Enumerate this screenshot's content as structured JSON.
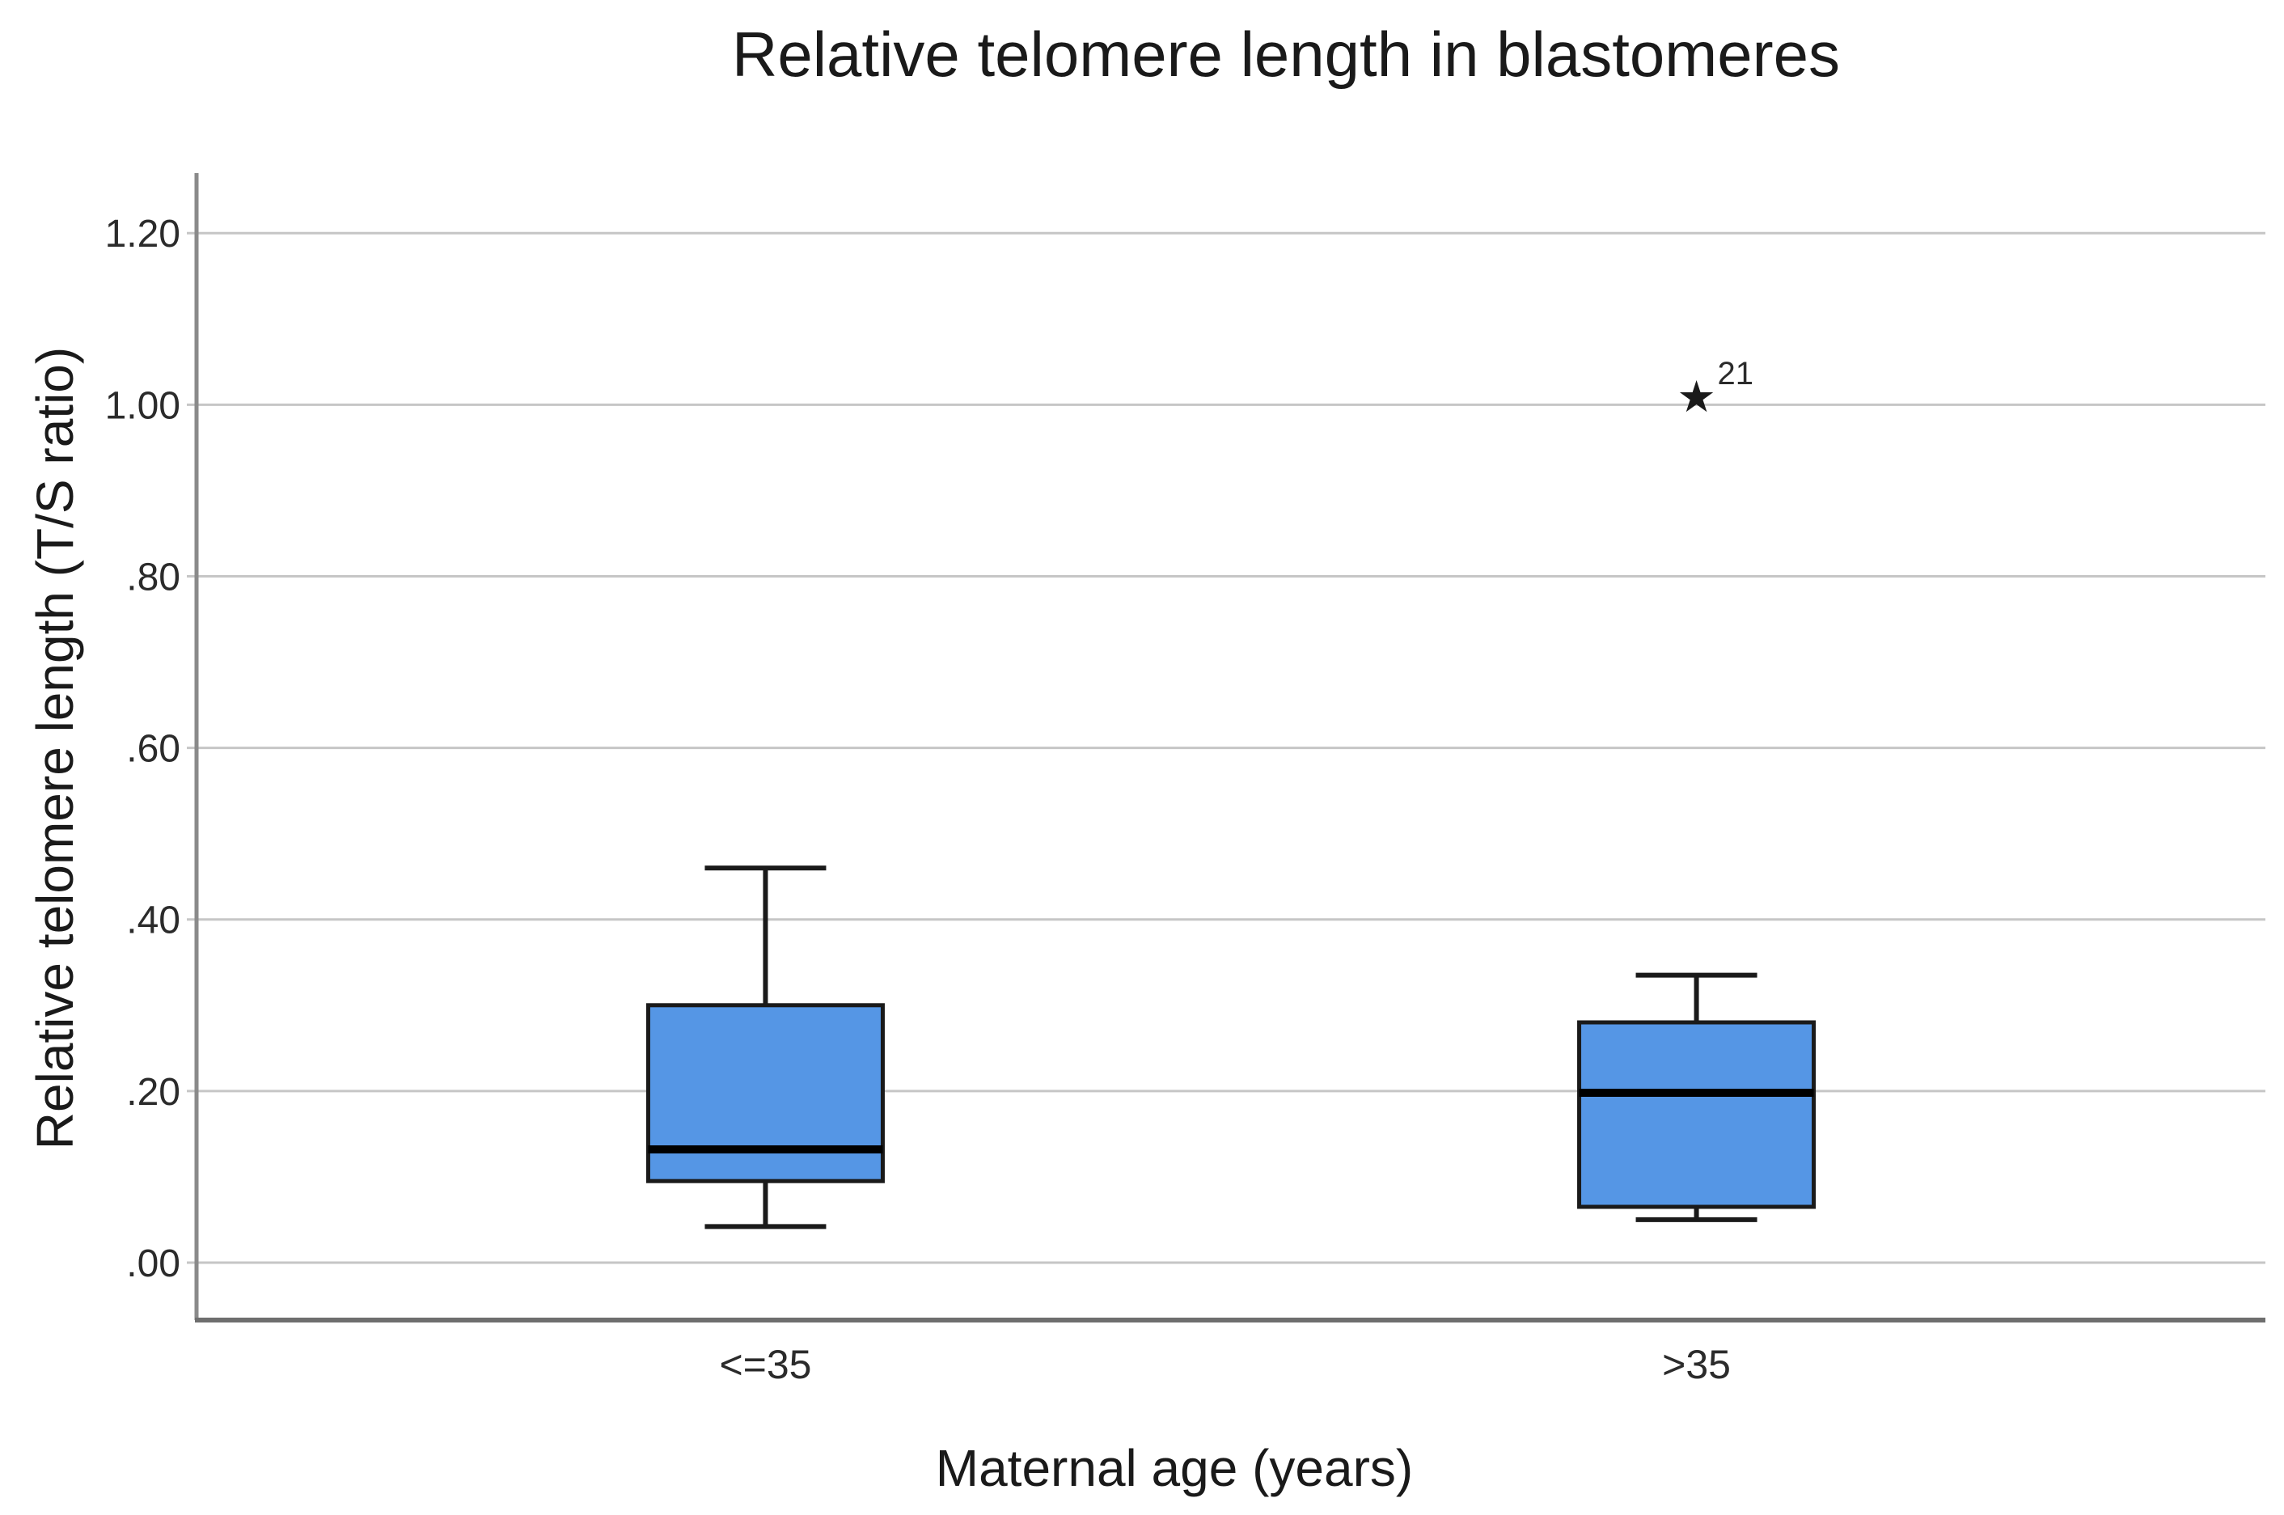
{
  "chart_data": {
    "type": "box",
    "title": "Relative telomere length in blastomeres",
    "xlabel": "Maternal age (years)",
    "ylabel": "Relative telomere length (T/S ratio)",
    "categories": [
      "<=35",
      ">35"
    ],
    "y_ticks": [
      {
        "label": "1.20",
        "value": 1.2
      },
      {
        "label": "1.00",
        "value": 1.0
      },
      {
        "label": ".80",
        "value": 0.8
      },
      {
        "label": ".60",
        "value": 0.6
      },
      {
        "label": ".40",
        "value": 0.4
      },
      {
        "label": ".20",
        "value": 0.2
      },
      {
        "label": ".00",
        "value": 0.0
      }
    ],
    "ylim": [
      -0.067,
      1.27
    ],
    "grid": true,
    "legend": false,
    "series": [
      {
        "category": "<=35",
        "whisker_low": 0.042,
        "q1": 0.095,
        "median": 0.132,
        "q3": 0.3,
        "whisker_high": 0.46,
        "outliers": []
      },
      {
        "category": ">35",
        "whisker_low": 0.05,
        "q1": 0.065,
        "median": 0.198,
        "q3": 0.28,
        "whisker_high": 0.335,
        "outliers": [
          {
            "value": 1.01,
            "label": "21",
            "marker": "★"
          }
        ]
      }
    ],
    "colors": {
      "box_fill": "#5596e5",
      "box_stroke": "#1a1a1a",
      "median": "#000000",
      "whisker": "#1a1a1a",
      "gridline": "#c6c6c6",
      "y_axis": "#8a8a8a",
      "x_axis": "#6e6e6e",
      "tick_text": "#2b2b2b",
      "outlier": "#1a1a1a"
    }
  }
}
